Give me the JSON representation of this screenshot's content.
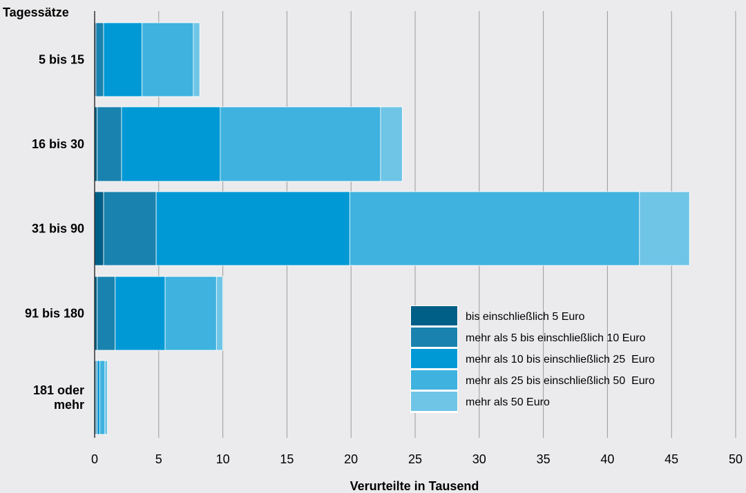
{
  "chart_data": {
    "type": "bar",
    "orientation": "horizontal",
    "stacked": true,
    "ylabel": "Tagessätze",
    "xlabel": "Verurteilte in Tausend",
    "categories": [
      "5 bis 15",
      "16 bis 30",
      "31 bis 90",
      "91 bis 180",
      "181 oder mehr"
    ],
    "category_lines": [
      [
        "5 bis 15"
      ],
      [
        "16 bis 30"
      ],
      [
        "31 bis 90"
      ],
      [
        "91 bis 180"
      ],
      [
        "181 oder",
        "mehr"
      ]
    ],
    "xlim": [
      0,
      50
    ],
    "xticks": [
      0,
      5,
      10,
      15,
      20,
      25,
      30,
      35,
      40,
      45,
      50
    ],
    "grid": "vertical",
    "legend_position": "lower-right inside plot",
    "series": [
      {
        "name": "bis einschließlich 5 Euro",
        "color": "#005f87",
        "values": [
          0.1,
          0.2,
          0.7,
          0.2,
          0.1
        ]
      },
      {
        "name": "mehr als 5 bis einschließlich 10 Euro",
        "color": "#1a82ae",
        "values": [
          0.6,
          1.9,
          4.1,
          1.4,
          0.1
        ]
      },
      {
        "name": "mehr als 10 bis einschließlich 25  Euro",
        "color": "#0099d6",
        "values": [
          3.0,
          7.7,
          15.1,
          3.9,
          0.2
        ]
      },
      {
        "name": "mehr als 25 bis einschließlich 50  Euro",
        "color": "#3fb2df",
        "values": [
          4.0,
          12.5,
          22.6,
          4.0,
          0.4
        ]
      },
      {
        "name": "mehr als 50 Euro",
        "color": "#6fc5e6",
        "values": [
          0.5,
          1.7,
          3.9,
          0.5,
          0.2
        ]
      }
    ]
  }
}
